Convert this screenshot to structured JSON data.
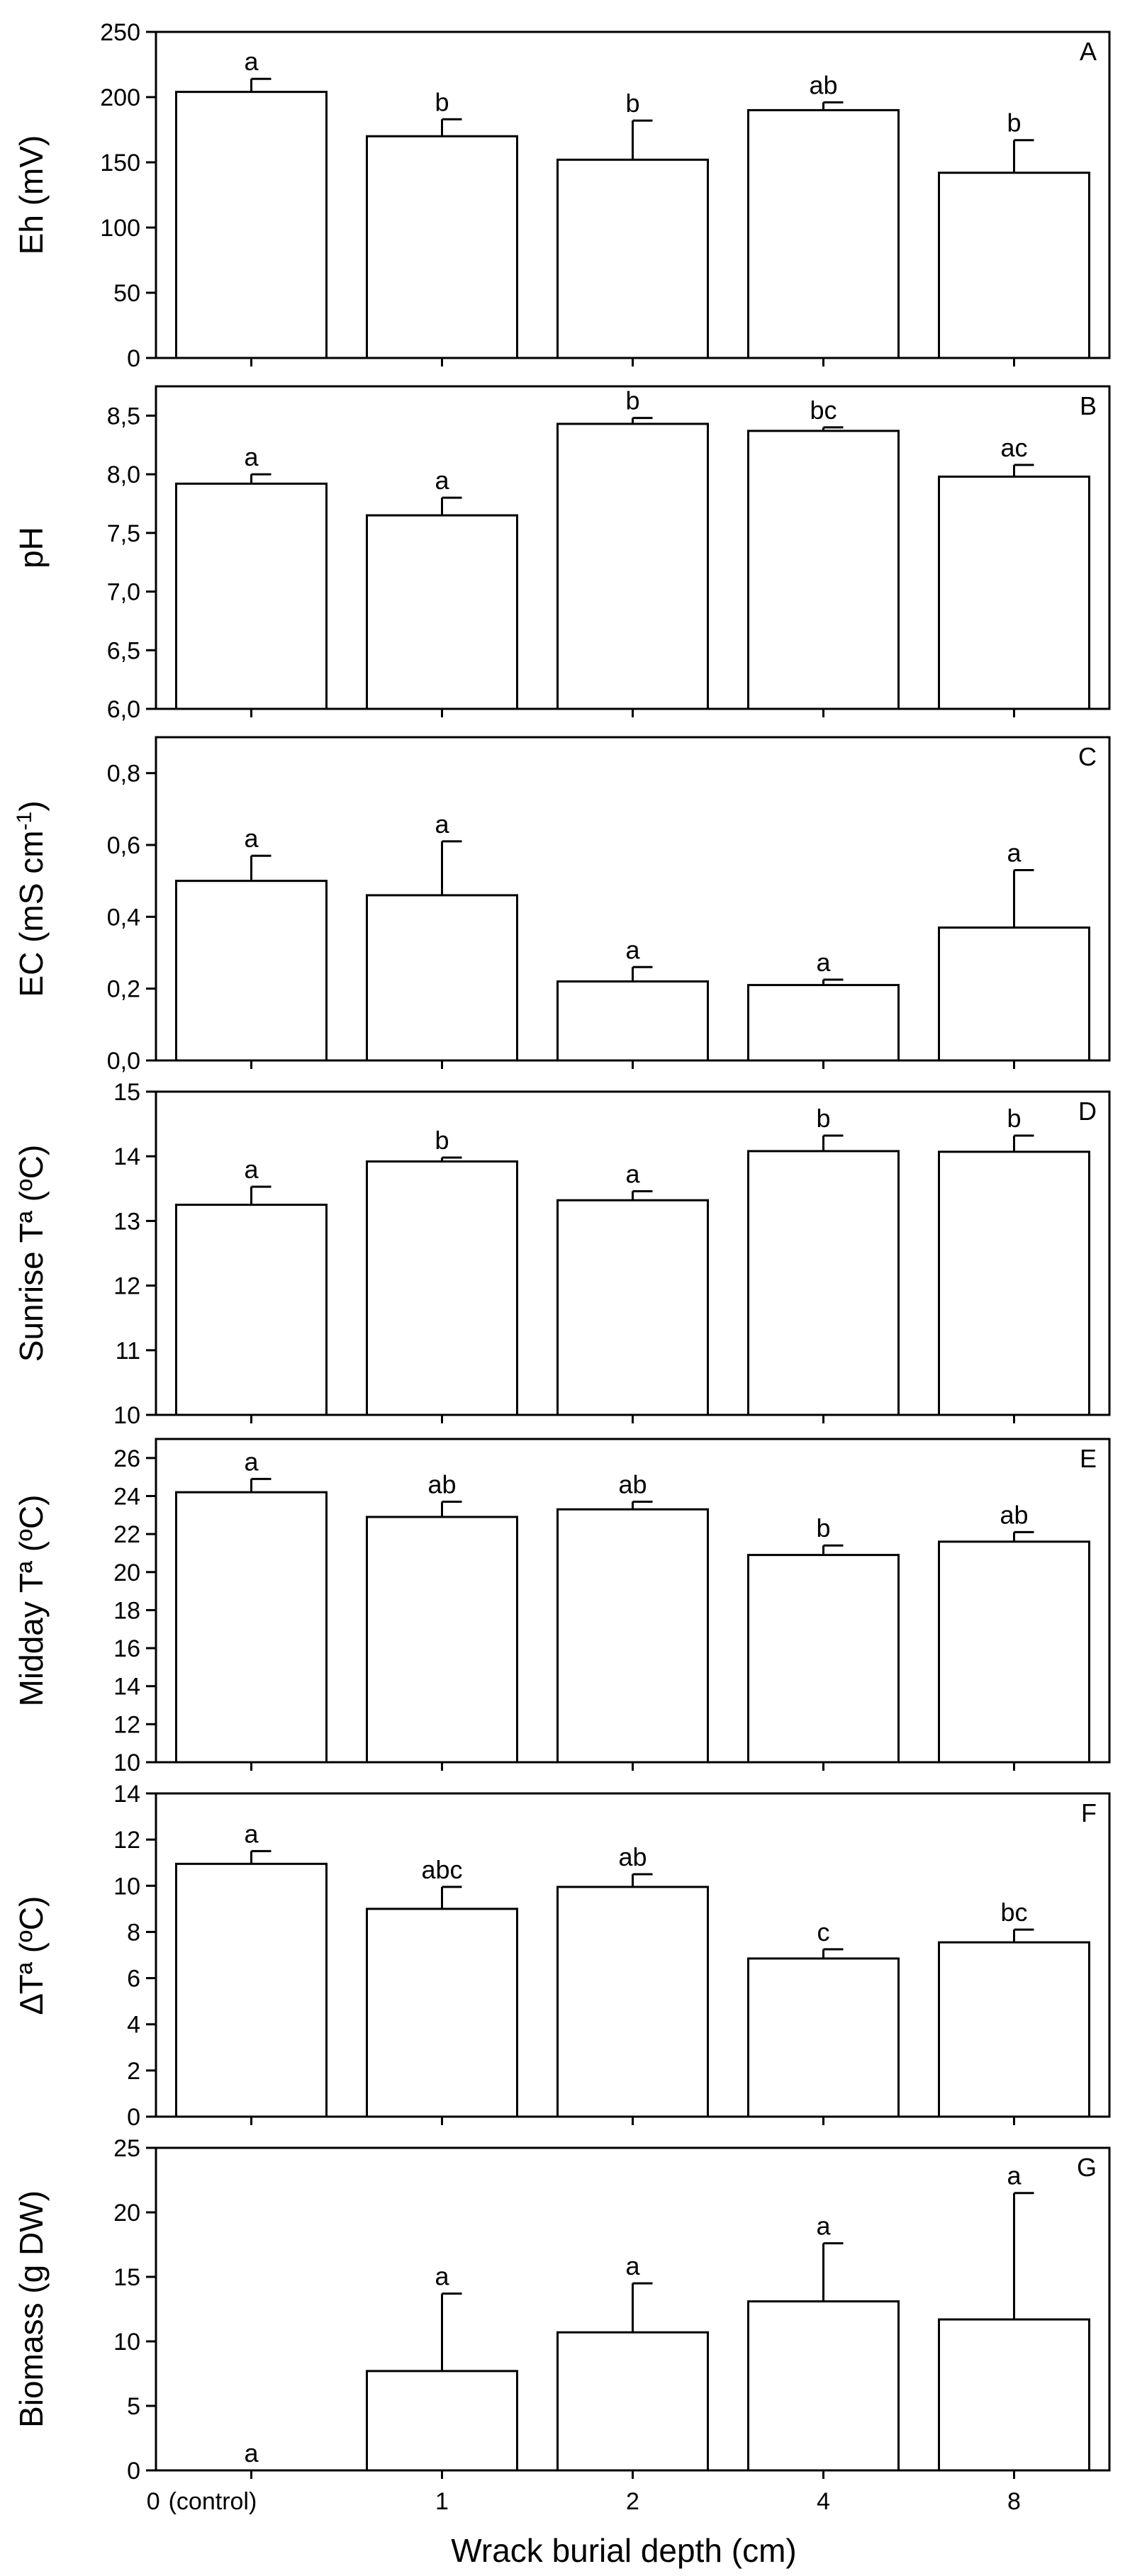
{
  "figure": {
    "x_axis_label": "Wrack burial depth (cm)",
    "categories": [
      "0",
      "1",
      "2",
      "4",
      "8"
    ],
    "category_suffix": [
      "(control)",
      "",
      "",
      "",
      ""
    ]
  },
  "chart_data": [
    {
      "type": "bar",
      "panel": "A",
      "ylabel": "Eh (mV)",
      "ylim": [
        0,
        250
      ],
      "yticks": [
        0,
        50,
        100,
        150,
        200,
        250
      ],
      "ytick_labels": [
        "0",
        "50",
        "100",
        "150",
        "200",
        "250"
      ],
      "categories": [
        "0 (control)",
        "1",
        "2",
        "4",
        "8"
      ],
      "values": [
        204,
        170,
        152,
        190,
        142
      ],
      "errors": [
        10,
        13,
        30,
        6,
        25
      ],
      "letters": [
        "a",
        "b",
        "b",
        "ab",
        "b"
      ]
    },
    {
      "type": "bar",
      "panel": "B",
      "ylabel": "pH",
      "ylim": [
        6.0,
        8.75
      ],
      "yticks": [
        6.0,
        6.5,
        7.0,
        7.5,
        8.0,
        8.5
      ],
      "ytick_labels": [
        "6,0",
        "6,5",
        "7,0",
        "7,5",
        "8,0",
        "8,5"
      ],
      "categories": [
        "0 (control)",
        "1",
        "2",
        "4",
        "8"
      ],
      "values": [
        7.92,
        7.65,
        8.43,
        8.37,
        7.98
      ],
      "errors": [
        0.08,
        0.15,
        0.05,
        0.03,
        0.1
      ],
      "letters": [
        "a",
        "a",
        "b",
        "bc",
        "ac"
      ]
    },
    {
      "type": "bar",
      "panel": "C",
      "ylabel": "EC (mS cm",
      "ylabel_sup": "-1",
      "ylabel_end": ")",
      "ylim": [
        0,
        0.9
      ],
      "yticks": [
        0,
        0.2,
        0.4,
        0.6,
        0.8
      ],
      "ytick_labels": [
        "0,0",
        "0,2",
        "0,4",
        "0,6",
        "0,8"
      ],
      "categories": [
        "0 (control)",
        "1",
        "2",
        "4",
        "8"
      ],
      "values": [
        0.5,
        0.46,
        0.22,
        0.21,
        0.37
      ],
      "errors": [
        0.07,
        0.15,
        0.04,
        0.015,
        0.16
      ],
      "letters": [
        "a",
        "a",
        "a",
        "a",
        "a"
      ]
    },
    {
      "type": "bar",
      "panel": "D",
      "ylabel": "Sunrise Tª (ºC)",
      "ylim": [
        10,
        15
      ],
      "yticks": [
        10,
        11,
        12,
        13,
        14,
        15
      ],
      "ytick_labels": [
        "10",
        "11",
        "12",
        "13",
        "14",
        "15"
      ],
      "categories": [
        "0 (control)",
        "1",
        "2",
        "4",
        "8"
      ],
      "values": [
        13.25,
        13.92,
        13.32,
        14.08,
        14.07
      ],
      "errors": [
        0.28,
        0.06,
        0.14,
        0.24,
        0.25
      ],
      "letters": [
        "a",
        "b",
        "a",
        "b",
        "b"
      ]
    },
    {
      "type": "bar",
      "panel": "E",
      "ylabel": "Midday Tª (ºC)",
      "ylim": [
        10,
        27
      ],
      "yticks": [
        10,
        12,
        14,
        16,
        18,
        20,
        22,
        24,
        26
      ],
      "ytick_labels": [
        "10",
        "12",
        "14",
        "16",
        "18",
        "20",
        "22",
        "24",
        "26"
      ],
      "categories": [
        "0 (control)",
        "1",
        "2",
        "4",
        "8"
      ],
      "values": [
        24.2,
        22.9,
        23.3,
        20.9,
        21.6
      ],
      "errors": [
        0.7,
        0.8,
        0.4,
        0.5,
        0.5
      ],
      "letters": [
        "a",
        "ab",
        "ab",
        "b",
        "ab"
      ]
    },
    {
      "type": "bar",
      "panel": "F",
      "ylabel": "∆Tª (ºC)",
      "ylim": [
        0,
        14
      ],
      "yticks": [
        0,
        2,
        4,
        6,
        8,
        10,
        12,
        14
      ],
      "ytick_labels": [
        "0",
        "2",
        "4",
        "6",
        "8",
        "10",
        "12",
        "14"
      ],
      "categories": [
        "0 (control)",
        "1",
        "2",
        "4",
        "8"
      ],
      "values": [
        10.95,
        9.0,
        9.95,
        6.85,
        7.55
      ],
      "errors": [
        0.55,
        0.95,
        0.55,
        0.4,
        0.55
      ],
      "letters": [
        "a",
        "abc",
        "ab",
        "c",
        "bc"
      ]
    },
    {
      "type": "bar",
      "panel": "G",
      "ylabel": "Biomass (g DW)",
      "ylim": [
        0,
        25
      ],
      "yticks": [
        0,
        5,
        10,
        15,
        20,
        25
      ],
      "ytick_labels": [
        "0",
        "5",
        "10",
        "15",
        "20",
        "25"
      ],
      "categories": [
        "0 (control)",
        "1",
        "2",
        "4",
        "8"
      ],
      "values": [
        0,
        7.7,
        10.7,
        13.1,
        11.7
      ],
      "errors": [
        0,
        6.0,
        3.8,
        4.5,
        9.8
      ],
      "letters": [
        "a",
        "a",
        "a",
        "a",
        "a"
      ]
    }
  ]
}
